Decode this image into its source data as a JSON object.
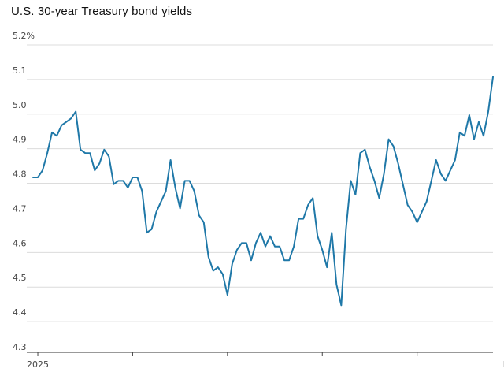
{
  "chart_data": {
    "type": "line",
    "title": "U.S. 30-year Treasury bond yields",
    "xlabel": "",
    "ylabel": "",
    "ylim": [
      4.3,
      5.2
    ],
    "yticks": [
      {
        "value": 4.3,
        "label": "4.3"
      },
      {
        "value": 4.4,
        "label": "4.4"
      },
      {
        "value": 4.5,
        "label": "4.5"
      },
      {
        "value": 4.6,
        "label": "4.6"
      },
      {
        "value": 4.7,
        "label": "4.7"
      },
      {
        "value": 4.8,
        "label": "4.8"
      },
      {
        "value": 4.9,
        "label": "4.9"
      },
      {
        "value": 5.0,
        "label": "5.0"
      },
      {
        "value": 5.1,
        "label": "5.1"
      },
      {
        "value": 5.2,
        "label": "5.2%"
      }
    ],
    "xticks": [
      {
        "index": 1,
        "label": "2025"
      },
      {
        "index": 21,
        "label": ""
      },
      {
        "index": 41,
        "label": ""
      },
      {
        "index": 61,
        "label": ""
      },
      {
        "index": 81,
        "label": ""
      },
      {
        "index": 101,
        "label": "May"
      }
    ],
    "line_color": "#1f78a8",
    "grid": true,
    "series": [
      {
        "values": [
          4.79,
          4.79,
          4.81,
          4.86,
          4.92,
          4.91,
          4.94,
          4.95,
          4.96,
          4.98,
          4.87,
          4.86,
          4.86,
          4.81,
          4.83,
          4.87,
          4.85,
          4.77,
          4.78,
          4.78,
          4.76,
          4.79,
          4.79,
          4.75,
          4.63,
          4.64,
          4.69,
          4.72,
          4.75,
          4.84,
          4.76,
          4.7,
          4.78,
          4.78,
          4.75,
          4.68,
          4.66,
          4.56,
          4.52,
          4.53,
          4.51,
          4.45,
          4.54,
          4.58,
          4.6,
          4.6,
          4.55,
          4.6,
          4.63,
          4.59,
          4.62,
          4.59,
          4.59,
          4.55,
          4.55,
          4.59,
          4.67,
          4.67,
          4.71,
          4.73,
          4.62,
          4.58,
          4.53,
          4.63,
          4.48,
          4.42,
          4.64,
          4.78,
          4.74,
          4.86,
          4.87,
          4.82,
          4.78,
          4.73,
          4.8,
          4.9,
          4.88,
          4.83,
          4.77,
          4.71,
          4.69,
          4.66,
          4.69,
          4.72,
          4.78,
          4.84,
          4.8,
          4.78,
          4.81,
          4.84,
          4.92,
          4.91,
          4.97,
          4.9,
          4.95,
          4.91,
          4.98,
          5.08
        ]
      }
    ]
  }
}
